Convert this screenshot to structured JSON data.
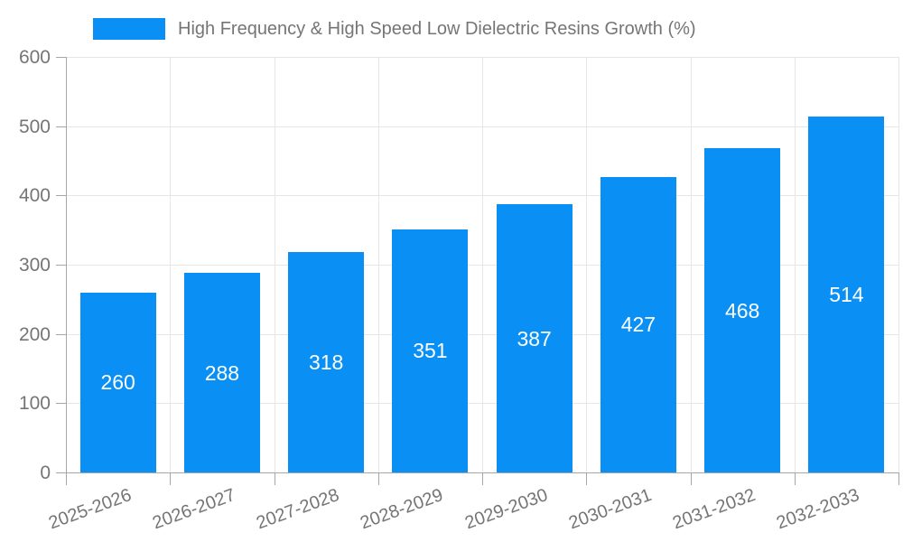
{
  "legend": {
    "label": "High Frequency & High Speed Low Dielectric Resins Growth (%)"
  },
  "colors": {
    "bar": "#0a90f4",
    "grid": "#e6e6e6",
    "axis": "#a6a6a6",
    "text": "#757575",
    "value_label": "#ffffff",
    "background": "#ffffff"
  },
  "chart_data": {
    "type": "bar",
    "title": "High Frequency & High Speed Low Dielectric Resins Growth (%)",
    "categories": [
      "2025-2026",
      "2026-2027",
      "2027-2028",
      "2028-2029",
      "2029-2030",
      "2030-2031",
      "2031-2032",
      "2032-2033"
    ],
    "values": [
      260,
      288,
      318,
      351,
      387,
      427,
      468,
      514
    ],
    "xlabel": "",
    "ylabel": "",
    "ylim": [
      0,
      600
    ],
    "yticks": [
      0,
      100,
      200,
      300,
      400,
      500,
      600
    ],
    "grid": true,
    "legend_position": "top-left",
    "value_labels": "inside-center",
    "x_tick_rotation_deg": -20
  }
}
